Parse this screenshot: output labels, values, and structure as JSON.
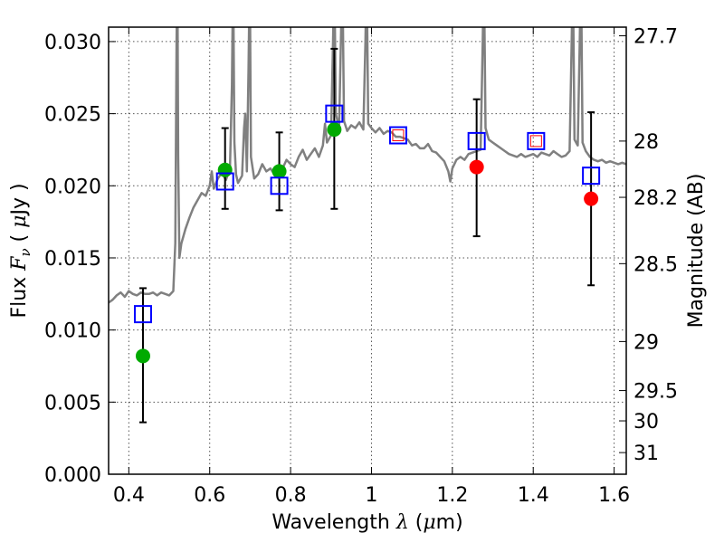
{
  "chart_data": {
    "type": "scatter",
    "xlabel_prefix": "Wavelength ",
    "xlabel_symbol": "λ",
    "xlabel_unit_open": " (",
    "xlabel_unit_mu": "μ",
    "xlabel_unit_close": "m)",
    "ylabel_prefix": "Flux ",
    "ylabel_symbol_F": "F",
    "ylabel_symbol_nu": "ν",
    "ylabel_unit_open": " ( ",
    "ylabel_unit_mu": "μ",
    "ylabel_unit_close": "Jy )",
    "ylabel_right": "Magnitude (AB)",
    "xlim": [
      0.35,
      1.63
    ],
    "ylim": [
      0.0,
      0.031
    ],
    "grid": true,
    "x_ticks": [
      0.4,
      0.6,
      0.8,
      1.0,
      1.2,
      1.4,
      1.6
    ],
    "x_tick_labels": [
      "0.4",
      "0.6",
      "0.8",
      "1",
      "1.2",
      "1.4",
      "1.6"
    ],
    "y_ticks": [
      0.0,
      0.005,
      0.01,
      0.015,
      0.02,
      0.025,
      0.03
    ],
    "y_tick_labels": [
      "0.000",
      "0.005",
      "0.010",
      "0.015",
      "0.020",
      "0.025",
      "0.030"
    ],
    "right_ticks": [
      {
        "label": "27.7",
        "flux": 0.0304
      },
      {
        "label": "28",
        "flux": 0.0231
      },
      {
        "label": "28.2",
        "flux": 0.0192
      },
      {
        "label": "28.5",
        "flux": 0.0146
      },
      {
        "label": "29",
        "flux": 0.0092
      },
      {
        "label": "29.5",
        "flux": 0.0058
      },
      {
        "label": "30",
        "flux": 0.0037
      },
      {
        "label": "31",
        "flux": 0.0015
      }
    ],
    "colors": {
      "spectrum": "#808080",
      "model_boxes": "#0000ff",
      "model_boxes_inner": "#ff0000",
      "obs_green": "#00aa00",
      "obs_red": "#ff0000",
      "errorbar": "#000000",
      "grid": "#555555"
    },
    "spectrum": {
      "name": "",
      "points": [
        [
          0.35,
          0.0119
        ],
        [
          0.36,
          0.0121
        ],
        [
          0.37,
          0.0124
        ],
        [
          0.38,
          0.0126
        ],
        [
          0.39,
          0.0123
        ],
        [
          0.4,
          0.0127
        ],
        [
          0.41,
          0.0125
        ],
        [
          0.42,
          0.0124
        ],
        [
          0.43,
          0.0126
        ],
        [
          0.44,
          0.0125
        ],
        [
          0.45,
          0.0125
        ],
        [
          0.46,
          0.0126
        ],
        [
          0.47,
          0.0124
        ],
        [
          0.48,
          0.0126
        ],
        [
          0.49,
          0.0125
        ],
        [
          0.5,
          0.0124
        ],
        [
          0.51,
          0.0127
        ],
        [
          0.515,
          0.016
        ],
        [
          0.518,
          0.03
        ],
        [
          0.52,
          0.035
        ],
        [
          0.522,
          0.022
        ],
        [
          0.525,
          0.015
        ],
        [
          0.53,
          0.016
        ],
        [
          0.54,
          0.017
        ],
        [
          0.55,
          0.0178
        ],
        [
          0.56,
          0.0185
        ],
        [
          0.57,
          0.019
        ],
        [
          0.58,
          0.0195
        ],
        [
          0.59,
          0.0193
        ],
        [
          0.6,
          0.02
        ],
        [
          0.605,
          0.021
        ],
        [
          0.61,
          0.0198
        ],
        [
          0.62,
          0.0205
        ],
        [
          0.63,
          0.0209
        ],
        [
          0.64,
          0.0204
        ],
        [
          0.65,
          0.0212
        ],
        [
          0.655,
          0.027
        ],
        [
          0.658,
          0.035
        ],
        [
          0.661,
          0.023
        ],
        [
          0.665,
          0.0208
        ],
        [
          0.67,
          0.0202
        ],
        [
          0.68,
          0.0207
        ],
        [
          0.685,
          0.024
        ],
        [
          0.688,
          0.025
        ],
        [
          0.692,
          0.021
        ],
        [
          0.696,
          0.028
        ],
        [
          0.699,
          0.035
        ],
        [
          0.702,
          0.022
        ],
        [
          0.71,
          0.0205
        ],
        [
          0.72,
          0.0208
        ],
        [
          0.73,
          0.0215
        ],
        [
          0.74,
          0.021
        ],
        [
          0.75,
          0.0212
        ],
        [
          0.76,
          0.0208
        ],
        [
          0.77,
          0.0206
        ],
        [
          0.78,
          0.0212
        ],
        [
          0.79,
          0.0218
        ],
        [
          0.8,
          0.0215
        ],
        [
          0.81,
          0.0213
        ],
        [
          0.82,
          0.022
        ],
        [
          0.83,
          0.0225
        ],
        [
          0.84,
          0.0218
        ],
        [
          0.85,
          0.0222
        ],
        [
          0.86,
          0.0226
        ],
        [
          0.87,
          0.022
        ],
        [
          0.88,
          0.0228
        ],
        [
          0.885,
          0.0243
        ],
        [
          0.89,
          0.023
        ],
        [
          0.9,
          0.0235
        ],
        [
          0.905,
          0.03
        ],
        [
          0.908,
          0.035
        ],
        [
          0.912,
          0.025
        ],
        [
          0.92,
          0.024
        ],
        [
          0.925,
          0.031
        ],
        [
          0.928,
          0.035
        ],
        [
          0.932,
          0.0245
        ],
        [
          0.94,
          0.0238
        ],
        [
          0.95,
          0.0242
        ],
        [
          0.96,
          0.024
        ],
        [
          0.97,
          0.0244
        ],
        [
          0.98,
          0.0239
        ],
        [
          0.985,
          0.03
        ],
        [
          0.988,
          0.035
        ],
        [
          0.992,
          0.0243
        ],
        [
          1.0,
          0.024
        ],
        [
          1.01,
          0.0237
        ],
        [
          1.02,
          0.024
        ],
        [
          1.03,
          0.0236
        ],
        [
          1.04,
          0.0238
        ],
        [
          1.05,
          0.0237
        ],
        [
          1.06,
          0.0234
        ],
        [
          1.07,
          0.0234
        ],
        [
          1.08,
          0.0233
        ],
        [
          1.09,
          0.0232
        ],
        [
          1.1,
          0.0228
        ],
        [
          1.11,
          0.0229
        ],
        [
          1.12,
          0.0226
        ],
        [
          1.13,
          0.0226
        ],
        [
          1.14,
          0.0229
        ],
        [
          1.15,
          0.0224
        ],
        [
          1.16,
          0.0223
        ],
        [
          1.17,
          0.022
        ],
        [
          1.18,
          0.0217
        ],
        [
          1.19,
          0.021
        ],
        [
          1.195,
          0.0203
        ],
        [
          1.2,
          0.0212
        ],
        [
          1.21,
          0.0218
        ],
        [
          1.22,
          0.022
        ],
        [
          1.23,
          0.0218
        ],
        [
          1.24,
          0.0222
        ],
        [
          1.25,
          0.0223
        ],
        [
          1.26,
          0.0224
        ],
        [
          1.27,
          0.0225
        ],
        [
          1.275,
          0.03
        ],
        [
          1.278,
          0.035
        ],
        [
          1.282,
          0.024
        ],
        [
          1.29,
          0.0232
        ],
        [
          1.3,
          0.023
        ],
        [
          1.31,
          0.0228
        ],
        [
          1.32,
          0.0226
        ],
        [
          1.33,
          0.0224
        ],
        [
          1.34,
          0.0222
        ],
        [
          1.35,
          0.0221
        ],
        [
          1.36,
          0.022
        ],
        [
          1.37,
          0.0222
        ],
        [
          1.38,
          0.022
        ],
        [
          1.39,
          0.0221
        ],
        [
          1.4,
          0.0222
        ],
        [
          1.41,
          0.022
        ],
        [
          1.42,
          0.0223
        ],
        [
          1.43,
          0.0222
        ],
        [
          1.44,
          0.0221
        ],
        [
          1.45,
          0.0224
        ],
        [
          1.46,
          0.0222
        ],
        [
          1.47,
          0.022
        ],
        [
          1.48,
          0.0221
        ],
        [
          1.49,
          0.0224
        ],
        [
          1.495,
          0.03
        ],
        [
          1.498,
          0.035
        ],
        [
          1.502,
          0.0232
        ],
        [
          1.51,
          0.0228
        ],
        [
          1.515,
          0.03
        ],
        [
          1.518,
          0.035
        ],
        [
          1.522,
          0.023
        ],
        [
          1.53,
          0.0224
        ],
        [
          1.54,
          0.022
        ],
        [
          1.55,
          0.0218
        ],
        [
          1.56,
          0.0217
        ],
        [
          1.57,
          0.0218
        ],
        [
          1.58,
          0.0216
        ],
        [
          1.59,
          0.0217
        ],
        [
          1.6,
          0.0216
        ],
        [
          1.61,
          0.0215
        ],
        [
          1.62,
          0.0216
        ],
        [
          1.63,
          0.0215
        ]
      ]
    },
    "model_boxes": [
      {
        "x": 0.435,
        "y": 0.0111,
        "inner": false
      },
      {
        "x": 0.638,
        "y": 0.0203,
        "inner": false
      },
      {
        "x": 0.772,
        "y": 0.02,
        "inner": false
      },
      {
        "x": 0.908,
        "y": 0.025,
        "inner": false
      },
      {
        "x": 1.066,
        "y": 0.0235,
        "inner": true
      },
      {
        "x": 1.26,
        "y": 0.0231,
        "inner": false
      },
      {
        "x": 1.407,
        "y": 0.0231,
        "inner": true
      },
      {
        "x": 1.543,
        "y": 0.0207,
        "inner": false
      }
    ],
    "observations": [
      {
        "x": 0.435,
        "y": 0.0082,
        "err_low": 0.0036,
        "err_high": 0.0129,
        "color": "green"
      },
      {
        "x": 0.638,
        "y": 0.0211,
        "err_low": 0.0184,
        "err_high": 0.024,
        "color": "green"
      },
      {
        "x": 0.772,
        "y": 0.021,
        "err_low": 0.0183,
        "err_high": 0.0237,
        "color": "green"
      },
      {
        "x": 0.908,
        "y": 0.0239,
        "err_low": 0.0184,
        "err_high": 0.0295,
        "color": "green"
      },
      {
        "x": 1.26,
        "y": 0.0213,
        "err_low": 0.0165,
        "err_high": 0.026,
        "color": "red"
      },
      {
        "x": 1.543,
        "y": 0.0191,
        "err_low": 0.0131,
        "err_high": 0.0251,
        "color": "red"
      }
    ]
  }
}
